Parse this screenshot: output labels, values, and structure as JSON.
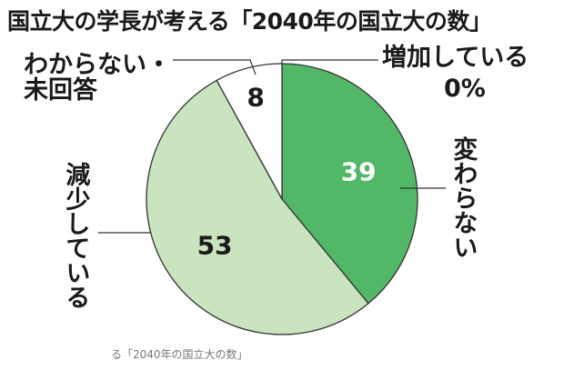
{
  "title": "国立大の学長が考える「2040年の国立大の数」",
  "caption": "る「2040年の国立大の数」",
  "chart_data": {
    "type": "pie",
    "title": "国立大の学長が考える「2040年の国立大の数」",
    "slices": [
      {
        "label": "増加している",
        "value": 0,
        "value_label": "0%",
        "color": "#52b868"
      },
      {
        "label": "変わらない",
        "value": 39,
        "value_label": "39",
        "color": "#52b868"
      },
      {
        "label": "減少している",
        "value": 53,
        "value_label": "53",
        "color": "#c9e4bf"
      },
      {
        "label": "わからない・未回答",
        "value": 8,
        "value_label": "8",
        "color": "#ffffff"
      }
    ],
    "unit": "%",
    "start": "top",
    "direction": "clockwise"
  },
  "labels": {
    "unknown_line1": "わからない・",
    "unknown_line2": "未回答"
  }
}
